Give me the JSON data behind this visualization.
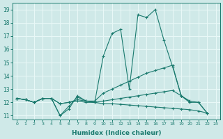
{
  "xlabel": "Humidex (Indice chaleur)",
  "xlim": [
    -0.5,
    23.5
  ],
  "ylim": [
    10.7,
    19.5
  ],
  "xticks": [
    0,
    1,
    2,
    3,
    4,
    5,
    6,
    7,
    8,
    9,
    10,
    11,
    12,
    13,
    14,
    15,
    16,
    17,
    18,
    19,
    20,
    21,
    22,
    23
  ],
  "yticks": [
    11,
    12,
    13,
    14,
    15,
    16,
    17,
    18,
    19
  ],
  "bg_color": "#cfe9e8",
  "grid_color": "#e8f8f7",
  "line_color": "#1a7a6e",
  "line1_x": [
    0,
    1,
    2,
    3,
    4,
    5,
    6,
    7,
    8,
    9,
    10,
    11,
    12,
    13,
    14,
    15,
    16,
    17,
    18,
    19,
    20,
    21,
    22
  ],
  "line1_y": [
    12.3,
    12.2,
    12.0,
    12.3,
    12.3,
    11.0,
    11.5,
    12.5,
    12.1,
    12.0,
    15.5,
    17.2,
    17.5,
    13.0,
    18.6,
    18.4,
    19.0,
    16.7,
    14.7,
    12.5,
    12.0,
    12.0,
    11.2
  ],
  "line2_x": [
    0,
    1,
    2,
    3,
    4,
    5,
    6,
    7,
    8,
    9,
    10,
    11,
    12,
    13,
    14,
    15,
    16,
    17,
    18,
    19,
    20
  ],
  "line2_y": [
    12.3,
    12.2,
    12.0,
    12.3,
    12.3,
    11.0,
    11.7,
    12.4,
    12.1,
    12.1,
    12.7,
    13.0,
    13.3,
    13.6,
    13.9,
    14.2,
    14.4,
    14.6,
    14.8,
    12.5,
    12.0
  ],
  "line3_x": [
    0,
    1,
    2,
    3,
    4,
    5,
    6,
    7,
    8,
    9,
    10,
    11,
    12,
    13,
    14,
    15,
    16,
    17,
    18,
    19,
    20,
    21,
    22
  ],
  "line3_y": [
    12.3,
    12.2,
    12.0,
    12.3,
    12.3,
    11.9,
    12.0,
    12.1,
    12.0,
    12.0,
    11.9,
    11.9,
    11.85,
    11.8,
    11.75,
    11.7,
    11.65,
    11.6,
    11.55,
    11.5,
    11.45,
    11.35,
    11.2
  ],
  "line4_x": [
    0,
    1,
    2,
    3,
    4,
    5,
    6,
    7,
    8,
    9,
    10,
    11,
    12,
    13,
    14,
    15,
    16,
    17,
    18,
    19,
    20,
    21,
    22
  ],
  "line4_y": [
    12.3,
    12.2,
    12.0,
    12.3,
    12.3,
    11.9,
    12.0,
    12.2,
    12.1,
    12.0,
    12.1,
    12.2,
    12.3,
    12.4,
    12.5,
    12.6,
    12.7,
    12.8,
    12.9,
    12.5,
    12.1,
    12.0,
    11.2
  ]
}
